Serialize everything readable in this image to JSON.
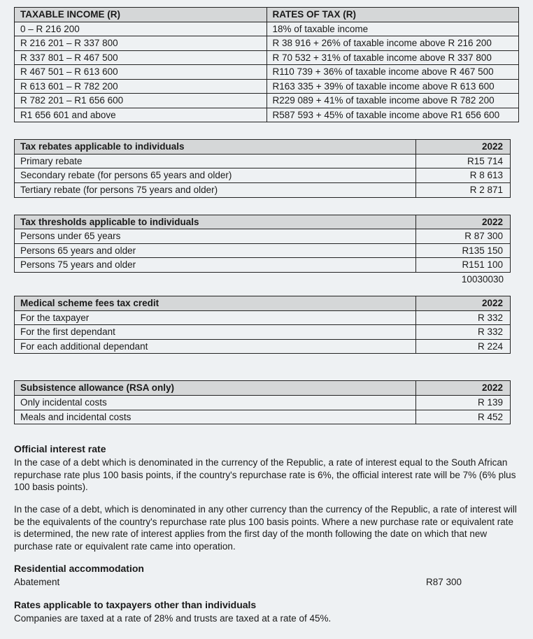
{
  "tax_brackets": {
    "headers": [
      "TAXABLE INCOME (R)",
      "RATES OF TAX (R)"
    ],
    "rows": [
      [
        "0 – R 216 200",
        "18% of taxable income"
      ],
      [
        "R 216 201 – R 337 800",
        "R 38 916 + 26% of taxable income above R 216 200"
      ],
      [
        "R 337 801 – R 467 500",
        "R 70 532 + 31% of taxable income above R 337 800"
      ],
      [
        "R 467 501 – R 613 600",
        "R110 739 + 36% of taxable income above R 467 500"
      ],
      [
        "R 613 601 – R 782 200",
        "R163 335 + 39% of taxable income above R 613 600"
      ],
      [
        "R 782 201 – R1 656 600",
        "R229 089 + 41% of taxable income above R 782 200"
      ],
      [
        "R1 656 601 and above",
        "R587 593 + 45% of taxable income above R1 656 600"
      ]
    ]
  },
  "rebates": {
    "title": "Tax rebates applicable to individuals",
    "year": "2022",
    "rows": [
      [
        "Primary rebate",
        "R15 714"
      ],
      [
        "Secondary rebate (for persons 65 years and older)",
        "R 8 613"
      ],
      [
        "Tertiary rebate (for persons 75 years and older)",
        "R 2 871"
      ]
    ]
  },
  "thresholds": {
    "title": "Tax thresholds applicable to individuals",
    "year": "2022",
    "rows": [
      [
        "Persons under 65 years",
        "R 87 300"
      ],
      [
        "Persons 65 years and older",
        "R135 150"
      ],
      [
        "Persons 75 years and older",
        "R151 100"
      ]
    ],
    "extra_number": "10030030"
  },
  "medical": {
    "title": "Medical scheme fees tax credit",
    "year": "2022",
    "rows": [
      [
        "For the taxpayer",
        "R 332"
      ],
      [
        "For the first dependant",
        "R 332"
      ],
      [
        "For each additional dependant",
        "R 224"
      ]
    ]
  },
  "subsistence": {
    "title": "Subsistence allowance (RSA only)",
    "year": "2022",
    "rows": [
      [
        "Only incidental costs",
        "R 139"
      ],
      [
        "Meals and incidental costs",
        "R 452"
      ]
    ]
  },
  "official_interest": {
    "heading": "Official interest rate",
    "para1": "In the case of a debt which is denominated in the currency of the Republic, a rate of interest equal to the South African repurchase rate plus 100 basis points, if the country's repurchase rate is 6%, the official interest rate will be 7% (6% plus 100 basis points).",
    "para2": "In the case of a debt, which is denominated in any other currency than the currency of the Republic, a rate of interest will be the equivalents of the country's repurchase rate plus 100 basis points. Where a new purchase rate or equivalent rate is determined, the new rate of interest applies from the first day of the month following the date on which that new purchase rate or equivalent rate came into operation."
  },
  "residential": {
    "heading": "Residential accommodation",
    "label": "Abatement",
    "value": "R87 300"
  },
  "other_taxpayers": {
    "heading": "Rates applicable to taxpayers other than individuals",
    "text": "Companies are taxed at a rate of 28% and trusts are taxed at a rate of 45%."
  }
}
